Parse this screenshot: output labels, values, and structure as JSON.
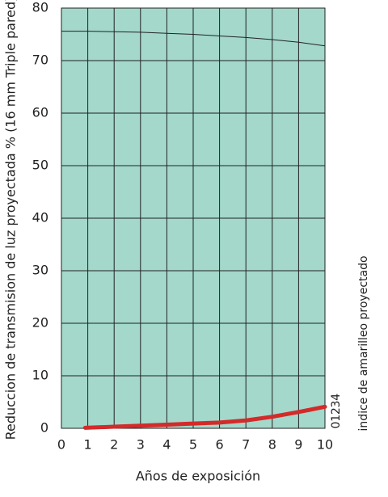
{
  "chart_data": {
    "type": "line",
    "y_label": "Reduccion de transmision de luz proyectada % (16 mm Triple pared)",
    "x_label": "Años de exposición",
    "y2_label": "indice de amarilleo proyectado",
    "xlim": [
      0,
      10
    ],
    "xticks": [
      0,
      1,
      2,
      3,
      4,
      5,
      6,
      7,
      8,
      9,
      10
    ],
    "ylim": [
      0,
      80
    ],
    "yticks": [
      0,
      10,
      20,
      30,
      40,
      50,
      60,
      70,
      80
    ],
    "y2lim": [
      0,
      60
    ],
    "y2ticks": [
      0,
      1,
      2,
      3,
      4
    ],
    "grid": true,
    "background": "#a3d8cb",
    "series": [
      {
        "color": "#222222",
        "width": 1,
        "x": [
          0,
          1,
          2,
          3,
          4,
          5,
          6,
          7,
          8,
          9,
          10
        ],
        "values": [
          75.6,
          75.6,
          75.5,
          75.4,
          75.2,
          75.0,
          74.7,
          74.4,
          74.0,
          73.5,
          72.8
        ]
      },
      {
        "color": "#d42a2a",
        "width": 5,
        "x": [
          0.9,
          2,
          3,
          4,
          5,
          6,
          7,
          8,
          9,
          10
        ],
        "values": [
          0.1,
          0.3,
          0.5,
          0.7,
          0.9,
          1.1,
          1.5,
          2.2,
          3.1,
          4.1
        ]
      }
    ]
  }
}
